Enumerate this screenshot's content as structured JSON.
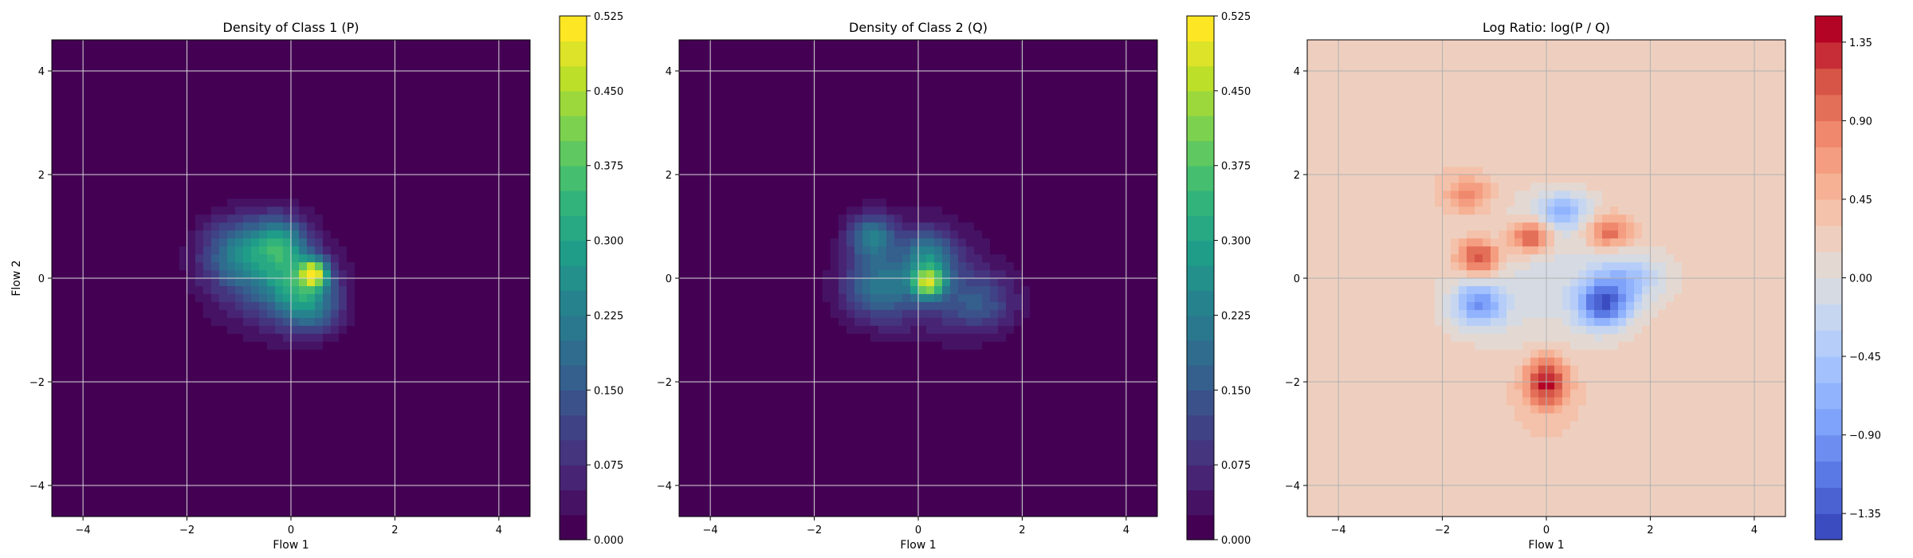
{
  "chart_data": [
    {
      "type": "heatmap",
      "title": "Density of Class 1 (P)",
      "xlabel": "Flow 1",
      "ylabel": "Flow 2",
      "xlim": [
        -4.6,
        4.6
      ],
      "ylim": [
        -4.6,
        4.6
      ],
      "xticks": [
        -4,
        -2,
        0,
        2,
        4
      ],
      "yticks": [
        -4,
        -2,
        0,
        2,
        4
      ],
      "grid": true,
      "colormap": "viridis",
      "colorbar": {
        "min": 0.0,
        "max": 0.525,
        "ticks": [
          "0.000",
          "0.075",
          "0.150",
          "0.225",
          "0.300",
          "0.375",
          "0.450",
          "0.525"
        ],
        "levels": 21
      },
      "density_blobs": [
        {
          "x": -1.0,
          "y": 0.5,
          "amp": 0.17,
          "sx": 0.5,
          "sy": 0.45
        },
        {
          "x": -0.2,
          "y": 0.7,
          "amp": 0.2,
          "sx": 0.35,
          "sy": 0.35
        },
        {
          "x": 0.45,
          "y": 0.1,
          "amp": 0.35,
          "sx": 0.18,
          "sy": 0.18
        },
        {
          "x": 0.1,
          "y": -0.1,
          "amp": 0.18,
          "sx": 0.45,
          "sy": 0.4
        },
        {
          "x": 0.4,
          "y": -0.6,
          "amp": 0.15,
          "sx": 0.4,
          "sy": 0.35
        },
        {
          "x": -0.4,
          "y": 0.0,
          "amp": 0.12,
          "sx": 0.8,
          "sy": 0.7
        }
      ]
    },
    {
      "type": "heatmap",
      "title": "Density of Class 2 (Q)",
      "xlabel": "Flow 1",
      "ylabel": "",
      "xlim": [
        -4.6,
        4.6
      ],
      "ylim": [
        -4.6,
        4.6
      ],
      "xticks": [
        -4,
        -2,
        0,
        2,
        4
      ],
      "yticks": [
        -4,
        -2,
        0,
        2,
        4
      ],
      "grid": true,
      "colormap": "viridis",
      "colorbar": {
        "min": 0.0,
        "max": 0.525,
        "ticks": [
          "0.000",
          "0.075",
          "0.150",
          "0.225",
          "0.300",
          "0.375",
          "0.450",
          "0.525"
        ],
        "levels": 21
      },
      "density_blobs": [
        {
          "x": -0.9,
          "y": 0.8,
          "amp": 0.2,
          "sx": 0.3,
          "sy": 0.3
        },
        {
          "x": -0.8,
          "y": -0.2,
          "amp": 0.15,
          "sx": 0.45,
          "sy": 0.4
        },
        {
          "x": 0.2,
          "y": -0.1,
          "amp": 0.32,
          "sx": 0.22,
          "sy": 0.2
        },
        {
          "x": 0.2,
          "y": 0.4,
          "amp": 0.17,
          "sx": 0.35,
          "sy": 0.35
        },
        {
          "x": 1.2,
          "y": -0.5,
          "amp": 0.12,
          "sx": 0.5,
          "sy": 0.4
        },
        {
          "x": 0.0,
          "y": 0.0,
          "amp": 0.1,
          "sx": 0.9,
          "sy": 0.75
        }
      ]
    },
    {
      "type": "heatmap",
      "title": "Log Ratio: log(P / Q)",
      "xlabel": "Flow 1",
      "ylabel": "",
      "xlim": [
        -4.6,
        4.6
      ],
      "ylim": [
        -4.6,
        4.6
      ],
      "xticks": [
        -4,
        -2,
        0,
        2,
        4
      ],
      "yticks": [
        -4,
        -2,
        0,
        2,
        4
      ],
      "grid": true,
      "colormap": "coolwarm",
      "background_value": 0.3,
      "colorbar": {
        "min": -1.5,
        "max": 1.5,
        "ticks": [
          "−1.35",
          "−0.90",
          "−0.45",
          "0.00",
          "0.45",
          "0.90",
          "1.35"
        ],
        "levels": 20
      },
      "ratio_blobs": [
        {
          "x": 0.0,
          "y": 0.0,
          "amp": -0.35,
          "sx": 1.5,
          "sy": 1.2
        },
        {
          "x": -1.3,
          "y": 0.4,
          "amp": 1.1,
          "sx": 0.3,
          "sy": 0.25
        },
        {
          "x": -0.3,
          "y": 0.8,
          "amp": 1.1,
          "sx": 0.28,
          "sy": 0.22
        },
        {
          "x": 1.2,
          "y": 0.9,
          "amp": 0.9,
          "sx": 0.3,
          "sy": 0.22
        },
        {
          "x": 0.0,
          "y": -2.0,
          "amp": 1.2,
          "sx": 0.3,
          "sy": 0.35
        },
        {
          "x": -1.5,
          "y": 1.6,
          "amp": 0.6,
          "sx": 0.3,
          "sy": 0.25
        },
        {
          "x": 1.1,
          "y": -0.5,
          "amp": -1.4,
          "sx": 0.35,
          "sy": 0.3
        },
        {
          "x": -1.3,
          "y": -0.5,
          "amp": -1.0,
          "sx": 0.35,
          "sy": 0.3
        },
        {
          "x": 0.3,
          "y": 1.3,
          "amp": -0.8,
          "sx": 0.35,
          "sy": 0.25
        },
        {
          "x": 1.6,
          "y": 0.0,
          "amp": -0.6,
          "sx": 0.5,
          "sy": 0.3
        }
      ]
    }
  ]
}
